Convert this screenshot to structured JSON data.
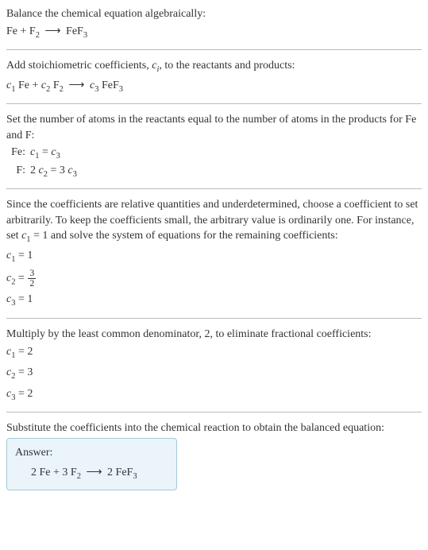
{
  "colors": {
    "text": "#333333",
    "divider": "#bbbbbb",
    "answer_bg": "#eaf4fa",
    "answer_border": "#a8c8d8"
  },
  "typography": {
    "body_fontsize": 14,
    "sub_scale": 0.75,
    "font_family": "Georgia, Times New Roman, serif"
  },
  "s1": {
    "instr": "Balance the chemical equation algebraically:",
    "r1": "Fe",
    "plus1": "+",
    "r2": "F",
    "r2sub": "2",
    "arrow": "⟶",
    "p1": "FeF",
    "p1sub": "3"
  },
  "s2": {
    "instr_a": "Add stoichiometric coefficients, ",
    "ci": "c",
    "cisub": "i",
    "instr_b": ", to the reactants and products:",
    "c1": "c",
    "c1s": "1",
    "sp1": " Fe",
    "plus1": "+",
    "c2": "c",
    "c2s": "2",
    "sp2": " F",
    "sp2sub": "2",
    "arrow": "⟶",
    "c3": "c",
    "c3s": "3",
    "sp3": " FeF",
    "sp3sub": "3"
  },
  "s3": {
    "instr": "Set the number of atoms in the reactants equal to the number of atoms in the products for Fe and F:",
    "rows": [
      {
        "lbl": "Fe:",
        "lhs_a": "c",
        "lhs_as": "1",
        "mid": " = ",
        "rhs_a": "c",
        "rhs_as": "3",
        "pre": ""
      },
      {
        "lbl": "F:",
        "lhs_a": "c",
        "lhs_as": "2",
        "mid": " = 3 ",
        "rhs_a": "c",
        "rhs_as": "3",
        "pre": "2 "
      }
    ]
  },
  "s4": {
    "instr_a": "Since the coefficients are relative quantities and underdetermined, choose a coefficient to set arbitrarily. To keep the coefficients small, the arbitrary value is ordinarily one. For instance, set ",
    "cvar": "c",
    "cvars": "1",
    "instr_b": " = 1 and solve the system of equations for the remaining coefficients:",
    "l1a": "c",
    "l1as": "1",
    "l1b": " = 1",
    "l2a": "c",
    "l2as": "2",
    "l2b": " = ",
    "l2num": "3",
    "l2den": "2",
    "l3a": "c",
    "l3as": "3",
    "l3b": " = 1"
  },
  "s5": {
    "instr": "Multiply by the least common denominator, 2, to eliminate fractional coefficients:",
    "l1a": "c",
    "l1as": "1",
    "l1b": " = 2",
    "l2a": "c",
    "l2as": "2",
    "l2b": " = 3",
    "l3a": "c",
    "l3as": "3",
    "l3b": " = 2"
  },
  "s6": {
    "instr": "Substitute the coefficients into the chemical reaction to obtain the balanced equation:",
    "answer_label": "Answer:",
    "eq_a": "2 Fe",
    "plus": "+",
    "eq_b": "3 F",
    "eq_bsub": "2",
    "arrow": "⟶",
    "eq_c": "2 FeF",
    "eq_csub": "3"
  }
}
